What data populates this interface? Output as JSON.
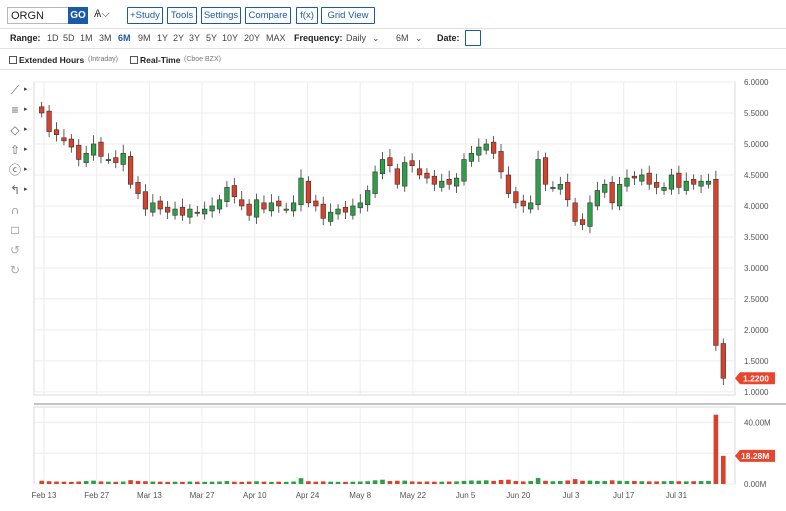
{
  "toolbar": {
    "symbol": "ORGN",
    "go_label": "GO",
    "chain_icon": "Ѧ⌵",
    "study_label": "+Study",
    "tools_label": "Tools",
    "settings_label": "Settings",
    "compare_label": "Compare",
    "fx_label": "f(x)",
    "gridview_label": "Grid View"
  },
  "range_bar": {
    "range_label": "Range:",
    "ranges": [
      "1D",
      "5D",
      "1M",
      "3M",
      "6M",
      "9M",
      "1Y",
      "2Y",
      "3Y",
      "5Y",
      "10Y",
      "20Y",
      "MAX"
    ],
    "active_range": "6M",
    "frequency_label": "Frequency:",
    "frequency_value": "Daily",
    "period_value": "6M",
    "date_label": "Date:"
  },
  "options": {
    "extended_hours": "Extended Hours",
    "extended_hours_sub": "(Intraday)",
    "real_time": "Real-Time",
    "real_time_sub": "(Cboe BZX)"
  },
  "colors": {
    "up": "#2e9e48",
    "down": "#d9412b",
    "accent": "#1b5aa8",
    "price_tag": "#e8452f"
  },
  "sidebar_icons": [
    "line-draw-icon",
    "fibonacci-icon",
    "shapes-icon",
    "arrows-icon",
    "annotation-icon",
    "pattern-icon",
    "magnet-icon",
    "lock-icon",
    "undo-icon",
    "redo-icon"
  ],
  "chart_data": {
    "type": "candlestick",
    "price_axis": [
      "6.0000",
      "5.5000",
      "5.0000",
      "4.5000",
      "4.0000",
      "3.5000",
      "3.0000",
      "2.5000",
      "2.0000",
      "1.5000",
      "1.0000"
    ],
    "price_range": [
      0.95,
      6.0
    ],
    "volume_axis": [
      "40.00M",
      "20.00M",
      "0.00M"
    ],
    "volume_range": [
      0,
      50
    ],
    "x_labels": [
      "Feb 13",
      "Feb 27",
      "Mar 13",
      "Mar 27",
      "Apr 10",
      "Apr 24",
      "May 8",
      "May 22",
      "Jun 5",
      "Jun 20",
      "Jul 3",
      "Jul 17",
      "Jul 31"
    ],
    "last_price": "1.2200",
    "last_volume": "18.28M",
    "closes": [
      5.5,
      5.2,
      5.15,
      5.05,
      4.95,
      4.75,
      4.85,
      5.0,
      4.8,
      4.75,
      4.7,
      4.85,
      4.35,
      4.2,
      3.95,
      4.05,
      3.95,
      3.9,
      3.95,
      3.85,
      3.95,
      3.9,
      3.95,
      4.0,
      4.1,
      4.3,
      4.15,
      4.0,
      3.85,
      4.1,
      3.95,
      4.05,
      4.0,
      3.95,
      4.05,
      4.45,
      4.05,
      4.0,
      3.8,
      3.9,
      3.95,
      3.9,
      4.0,
      4.05,
      4.25,
      4.55,
      4.75,
      4.65,
      4.35,
      4.7,
      4.65,
      4.5,
      4.45,
      4.35,
      4.4,
      4.35,
      4.45,
      4.75,
      4.85,
      4.95,
      5.0,
      4.85,
      4.55,
      4.2,
      4.05,
      4.0,
      4.05,
      4.75,
      4.35,
      4.3,
      4.35,
      4.1,
      3.75,
      3.7,
      4.05,
      4.25,
      4.35,
      4.05,
      4.35,
      4.45,
      4.45,
      4.5,
      4.35,
      4.3,
      4.3,
      4.5,
      4.3,
      4.4,
      4.35,
      4.4,
      4.4,
      1.75,
      1.22
    ],
    "volumes": [
      2.1,
      1.8,
      1.6,
      1.5,
      1.4,
      1.6,
      1.9,
      2.2,
      1.7,
      1.5,
      1.4,
      1.6,
      2.5,
      2.0,
      1.8,
      1.6,
      1.5,
      1.4,
      1.5,
      1.4,
      1.6,
      1.5,
      1.4,
      1.5,
      1.6,
      1.9,
      1.5,
      1.4,
      1.6,
      1.8,
      1.5,
      1.4,
      1.5,
      1.4,
      1.6,
      3.8,
      1.8,
      1.5,
      1.7,
      1.5,
      1.4,
      1.4,
      1.5,
      1.6,
      1.8,
      2.4,
      2.8,
      1.9,
      2.1,
      2.2,
      1.7,
      1.5,
      1.6,
      1.5,
      1.5,
      1.6,
      1.7,
      2.0,
      2.3,
      2.2,
      2.4,
      2.0,
      2.6,
      2.8,
      1.9,
      1.7,
      2.0,
      3.9,
      2.1,
      1.8,
      2.0,
      2.3,
      3.2,
      2.1,
      2.2,
      2.0,
      1.9,
      2.4,
      2.1,
      1.9,
      2.0,
      1.8,
      1.7,
      1.7,
      1.8,
      2.0,
      1.8,
      1.7,
      1.8,
      1.9,
      2.0,
      45.0,
      18.28
    ]
  }
}
